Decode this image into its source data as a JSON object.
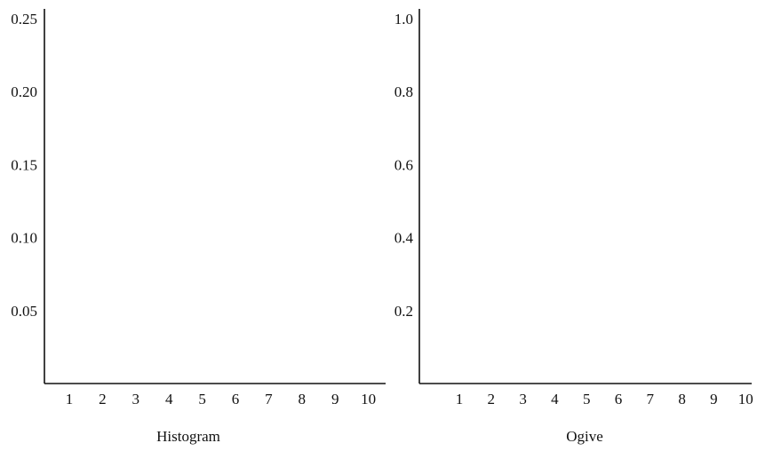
{
  "chart_data": [
    {
      "type": "bar",
      "title": "",
      "caption": "Histogram",
      "xlabel": "",
      "ylabel": "",
      "x_ticks": [
        "1",
        "2",
        "3",
        "4",
        "5",
        "6",
        "7",
        "8",
        "9",
        "10"
      ],
      "y_ticks": [
        "0.05",
        "0.10",
        "0.15",
        "0.20",
        "0.25"
      ],
      "xlim": [
        0,
        10.5
      ],
      "ylim": [
        0,
        0.25
      ],
      "series": [],
      "grid": false
    },
    {
      "type": "line",
      "title": "",
      "caption": "Ogive",
      "xlabel": "",
      "ylabel": "",
      "x_ticks": [
        "1",
        "2",
        "3",
        "4",
        "5",
        "6",
        "7",
        "8",
        "9",
        "10"
      ],
      "y_ticks": [
        "0.2",
        "0.4",
        "0.6",
        "0.8",
        "1.0"
      ],
      "xlim": [
        0,
        10
      ],
      "ylim": [
        0,
        1.0
      ],
      "series": [],
      "grid": false
    }
  ]
}
